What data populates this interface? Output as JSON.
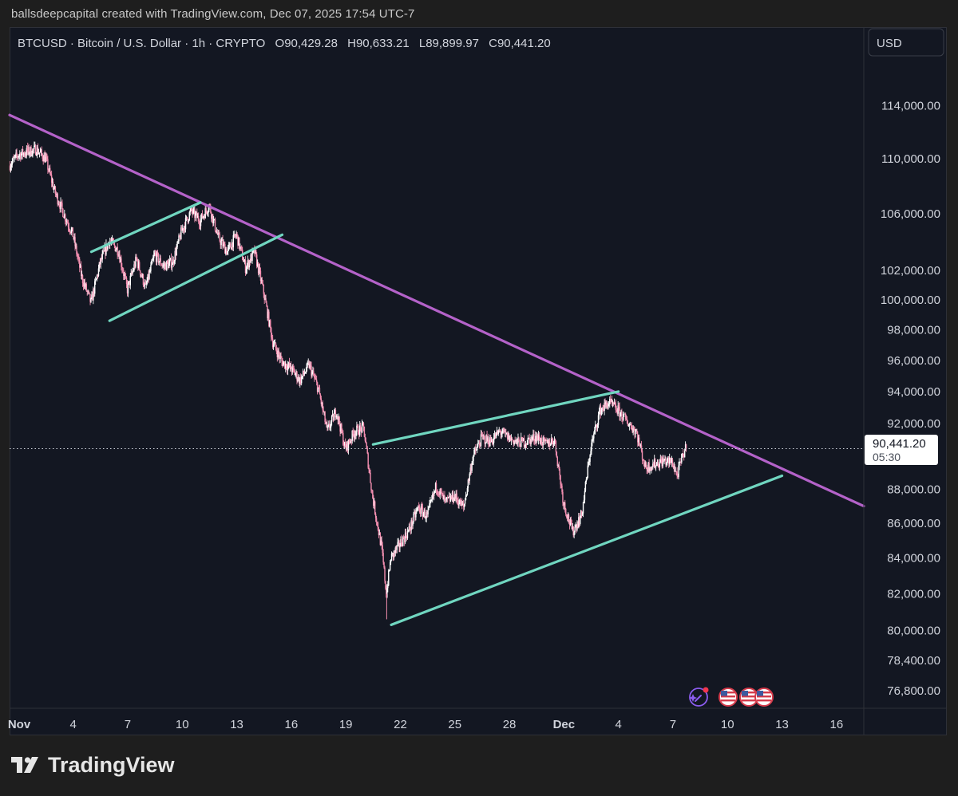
{
  "header": {
    "credit": "ballsdeepcapital created with TradingView.com, Dec 07, 2025 17:54 UTC-7"
  },
  "legend": {
    "symbol": "BTCUSD · Bitcoin / U.S. Dollar · 1h · CRYPTO",
    "open": "O90,429.28",
    "high": "H90,633.21",
    "low": "L89,899.97",
    "close": "C90,441.20"
  },
  "currency_button": "USD",
  "price_label": {
    "price": "90,441.20",
    "countdown": "05:30"
  },
  "brand": {
    "name": "TradingView"
  },
  "colors": {
    "background": "#131722",
    "candle_up": "#ffffff",
    "candle_down": "#f48fb1",
    "trendline": "#b462c9",
    "channel": "#70d6c0",
    "axis_text": "#d1d4dc"
  },
  "icons": [
    "tradingview-logo-icon",
    "sparkle-alert-icon",
    "us-flag-event-icon"
  ],
  "chart_data": {
    "type": "candlestick",
    "interval": "1h",
    "symbol": "BTCUSD",
    "yscale": "log",
    "ylim": [
      75900,
      117600
    ],
    "xlim": [
      "2025-10-31T12:00",
      "2025-12-17T12:00"
    ],
    "y_ticks": [
      76800,
      78400,
      80000,
      82000,
      84000,
      86000,
      88000,
      92000,
      94000,
      96000,
      98000,
      100000,
      102000,
      106000,
      110000,
      114000
    ],
    "y_tick_labels": [
      "76,800.00",
      "78,400.00",
      "80,000.00",
      "82,000.00",
      "84,000.00",
      "86,000.00",
      "88,000.00",
      "92,000.00",
      "94,000.00",
      "96,000.00",
      "98,000.00",
      "100,000.00",
      "102,000.00",
      "106,000.00",
      "110,000.00",
      "114,000.00"
    ],
    "x_ticks": [
      {
        "date": "2025-11-01",
        "label": "Nov"
      },
      {
        "date": "2025-11-04",
        "label": "4"
      },
      {
        "date": "2025-11-07",
        "label": "7"
      },
      {
        "date": "2025-11-10",
        "label": "10"
      },
      {
        "date": "2025-11-13",
        "label": "13"
      },
      {
        "date": "2025-11-16",
        "label": "16"
      },
      {
        "date": "2025-11-19",
        "label": "19"
      },
      {
        "date": "2025-11-22",
        "label": "22"
      },
      {
        "date": "2025-11-25",
        "label": "25"
      },
      {
        "date": "2025-11-28",
        "label": "28"
      },
      {
        "date": "2025-12-01",
        "label": "Dec"
      },
      {
        "date": "2025-12-04",
        "label": "4"
      },
      {
        "date": "2025-12-07",
        "label": "7"
      },
      {
        "date": "2025-12-10",
        "label": "10"
      },
      {
        "date": "2025-12-13",
        "label": "13"
      },
      {
        "date": "2025-12-16",
        "label": "16"
      }
    ],
    "price_path": [
      [
        "2025-10-31T12:00",
        109500
      ],
      [
        "2025-11-01T00:00",
        110300
      ],
      [
        "2025-11-02T00:00",
        110700
      ],
      [
        "2025-11-02T12:00",
        110000
      ],
      [
        "2025-11-03T00:00",
        107600
      ],
      [
        "2025-11-03T12:00",
        106000
      ],
      [
        "2025-11-04T00:00",
        104500
      ],
      [
        "2025-11-04T12:00",
        101500
      ],
      [
        "2025-11-05T00:00",
        99800
      ],
      [
        "2025-11-05T12:00",
        102500
      ],
      [
        "2025-11-06T00:00",
        104100
      ],
      [
        "2025-11-06T12:00",
        103400
      ],
      [
        "2025-11-07T00:00",
        100700
      ],
      [
        "2025-11-07T12:00",
        102800
      ],
      [
        "2025-11-08T00:00",
        100800
      ],
      [
        "2025-11-08T12:00",
        103100
      ],
      [
        "2025-11-09T00:00",
        102300
      ],
      [
        "2025-11-09T12:00",
        102600
      ],
      [
        "2025-11-10T00:00",
        104800
      ],
      [
        "2025-11-10T12:00",
        106200
      ],
      [
        "2025-11-11T00:00",
        105500
      ],
      [
        "2025-11-11T12:00",
        106600
      ],
      [
        "2025-11-12T00:00",
        104300
      ],
      [
        "2025-11-12T12:00",
        103300
      ],
      [
        "2025-11-13T00:00",
        104500
      ],
      [
        "2025-11-13T12:00",
        102200
      ],
      [
        "2025-11-14T00:00",
        103300
      ],
      [
        "2025-11-14T12:00",
        100500
      ],
      [
        "2025-11-15T00:00",
        97200
      ],
      [
        "2025-11-15T12:00",
        95900
      ],
      [
        "2025-11-16T00:00",
        95500
      ],
      [
        "2025-11-16T12:00",
        94700
      ],
      [
        "2025-11-17T00:00",
        95700
      ],
      [
        "2025-11-17T12:00",
        94200
      ],
      [
        "2025-11-18T00:00",
        91500
      ],
      [
        "2025-11-18T12:00",
        92800
      ],
      [
        "2025-11-19T00:00",
        90400
      ],
      [
        "2025-11-19T12:00",
        91500
      ],
      [
        "2025-11-20T00:00",
        91700
      ],
      [
        "2025-11-20T12:00",
        87500
      ],
      [
        "2025-11-21T00:00",
        84500
      ],
      [
        "2025-11-21T06:00",
        82000
      ],
      [
        "2025-11-21T12:00",
        84000
      ],
      [
        "2025-11-22T00:00",
        84800
      ],
      [
        "2025-11-22T12:00",
        85600
      ],
      [
        "2025-11-23T00:00",
        86900
      ],
      [
        "2025-11-23T12:00",
        86400
      ],
      [
        "2025-11-24T00:00",
        88200
      ],
      [
        "2025-11-24T12:00",
        87200
      ],
      [
        "2025-11-25T00:00",
        87600
      ],
      [
        "2025-11-25T12:00",
        86900
      ],
      [
        "2025-11-26T00:00",
        89900
      ],
      [
        "2025-11-26T12:00",
        91100
      ],
      [
        "2025-11-27T00:00",
        90900
      ],
      [
        "2025-11-27T12:00",
        91500
      ],
      [
        "2025-11-28T00:00",
        91100
      ],
      [
        "2025-11-28T12:00",
        90800
      ],
      [
        "2025-11-29T00:00",
        90900
      ],
      [
        "2025-11-29T12:00",
        91200
      ],
      [
        "2025-11-30T00:00",
        90700
      ],
      [
        "2025-11-30T12:00",
        91000
      ],
      [
        "2025-12-01T00:00",
        87200
      ],
      [
        "2025-12-01T12:00",
        85500
      ],
      [
        "2025-12-02T00:00",
        86500
      ],
      [
        "2025-12-02T12:00",
        90500
      ],
      [
        "2025-12-03T00:00",
        92800
      ],
      [
        "2025-12-03T12:00",
        93300
      ],
      [
        "2025-12-04T00:00",
        92800
      ],
      [
        "2025-12-04T12:00",
        92100
      ],
      [
        "2025-12-05T00:00",
        91500
      ],
      [
        "2025-12-05T12:00",
        89300
      ],
      [
        "2025-12-06T00:00",
        89500
      ],
      [
        "2025-12-06T12:00",
        89700
      ],
      [
        "2025-12-07T00:00",
        89600
      ],
      [
        "2025-12-07T06:00",
        88800
      ],
      [
        "2025-12-07T12:00",
        89800
      ],
      [
        "2025-12-07T17:00",
        90441
      ]
    ],
    "notable_points": {
      "high": [
        "2025-11-01T12:00",
        111200
      ],
      "low": [
        "2025-11-21T06:00",
        80600
      ],
      "last": [
        "2025-12-07T17:00",
        90441.2
      ]
    },
    "current_price": 90441.2,
    "drawings": [
      {
        "name": "downtrend-resistance",
        "color": "#b462c9",
        "points": [
          [
            "2025-10-31T12:00",
            113300
          ],
          [
            "2025-12-17T12:00",
            87000
          ]
        ]
      },
      {
        "name": "nov-channel-top",
        "color": "#70d6c0",
        "points": [
          [
            "2025-11-05T00:00",
            103300
          ],
          [
            "2025-11-11T00:00",
            106800
          ]
        ]
      },
      {
        "name": "nov-channel-bottom",
        "color": "#70d6c0",
        "points": [
          [
            "2025-11-06T00:00",
            98600
          ],
          [
            "2025-11-15T12:00",
            104500
          ]
        ]
      },
      {
        "name": "dec-channel-top",
        "color": "#70d6c0",
        "points": [
          [
            "2025-11-20T12:00",
            90700
          ],
          [
            "2025-12-04T00:00",
            94000
          ]
        ]
      },
      {
        "name": "dec-channel-bottom",
        "color": "#70d6c0",
        "points": [
          [
            "2025-11-21T12:00",
            80300
          ],
          [
            "2025-12-13T00:00",
            88800
          ]
        ]
      }
    ]
  }
}
